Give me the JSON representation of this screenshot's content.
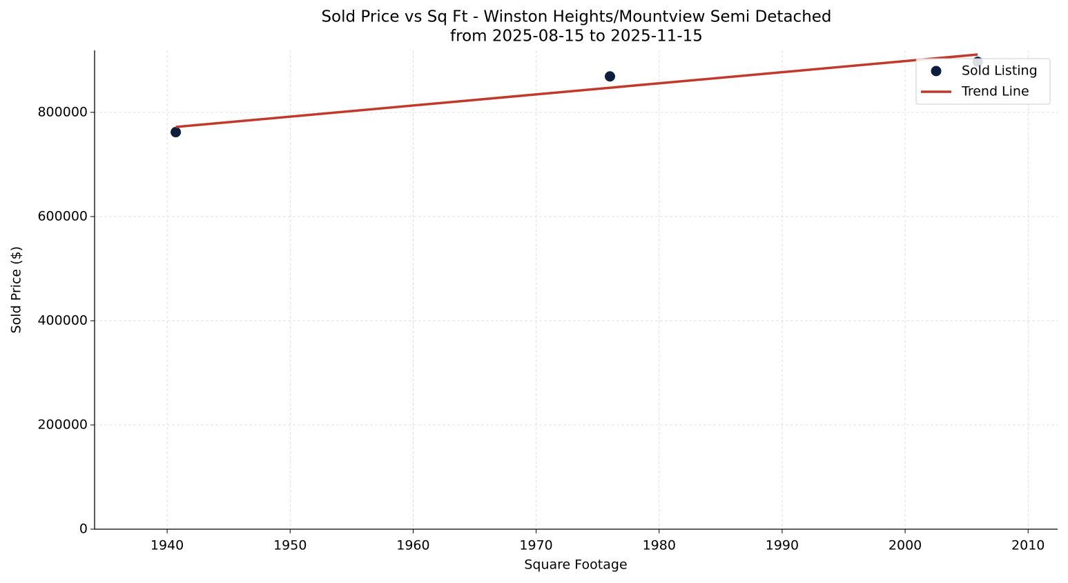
{
  "chart_data": {
    "type": "scatter",
    "title": "Sold Price vs Sq Ft - Winston Heights/Mountview Semi Detached",
    "subtitle": "from 2025-08-15 to 2025-11-15",
    "x_label": "Square Footage",
    "y_label": "Sold Price ($)",
    "xlim": [
      1934.1,
      2012.4
    ],
    "ylim": [
      0,
      919000
    ],
    "xticks": [
      1940,
      1950,
      1960,
      1970,
      1980,
      1990,
      2000,
      2010
    ],
    "yticks": [
      0,
      200000,
      400000,
      600000,
      800000
    ],
    "grid": true,
    "legend": "upper right",
    "series": [
      {
        "name": "Sold Listing",
        "type": "scatter",
        "color": "#0d1f3c",
        "x": [
          1940.7,
          1976.0,
          2005.9
        ],
        "values": [
          762000,
          869000,
          897000
        ]
      },
      {
        "name": "Trend Line",
        "type": "line",
        "color": "#c0392b",
        "x": [
          1940.7,
          2005.9
        ],
        "values": [
          772000,
          911000
        ]
      }
    ]
  }
}
